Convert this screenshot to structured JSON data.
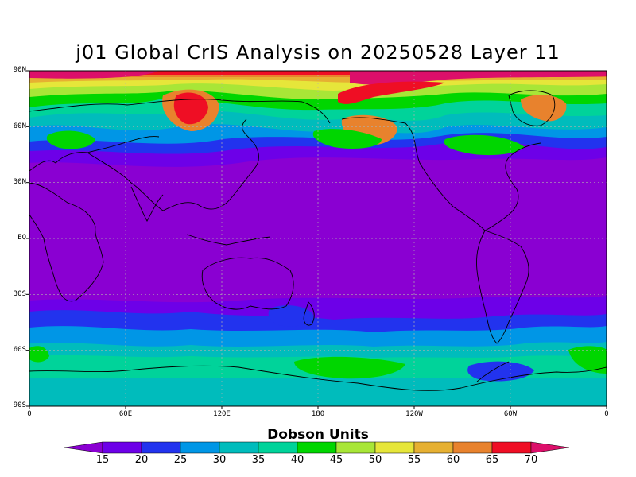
{
  "title": "j01 Global CrIS Analysis on 20250528 Layer 11",
  "map": {
    "projection": "equirectangular",
    "lon_range": [
      0,
      360
    ],
    "lat_range": [
      -90,
      90
    ],
    "lat_labels": [
      "90N",
      "60N",
      "30N",
      "EQ",
      "30S",
      "60S",
      "90S"
    ],
    "lon_labels": [
      "0",
      "60E",
      "120E",
      "180",
      "120W",
      "60W",
      "0"
    ],
    "grid": true
  },
  "colorbar": {
    "title": "Dobson Units",
    "levels": [
      "15",
      "20",
      "25",
      "30",
      "35",
      "40",
      "45",
      "50",
      "55",
      "60",
      "65",
      "70"
    ],
    "colors": [
      "#8a00d2",
      "#6d00e8",
      "#2233ee",
      "#0096e6",
      "#00bcbc",
      "#00d39a",
      "#00d600",
      "#a8e637",
      "#e6e63a",
      "#e6b032",
      "#e8822d",
      "#ef0e24",
      "#dc0f6a"
    ]
  }
}
